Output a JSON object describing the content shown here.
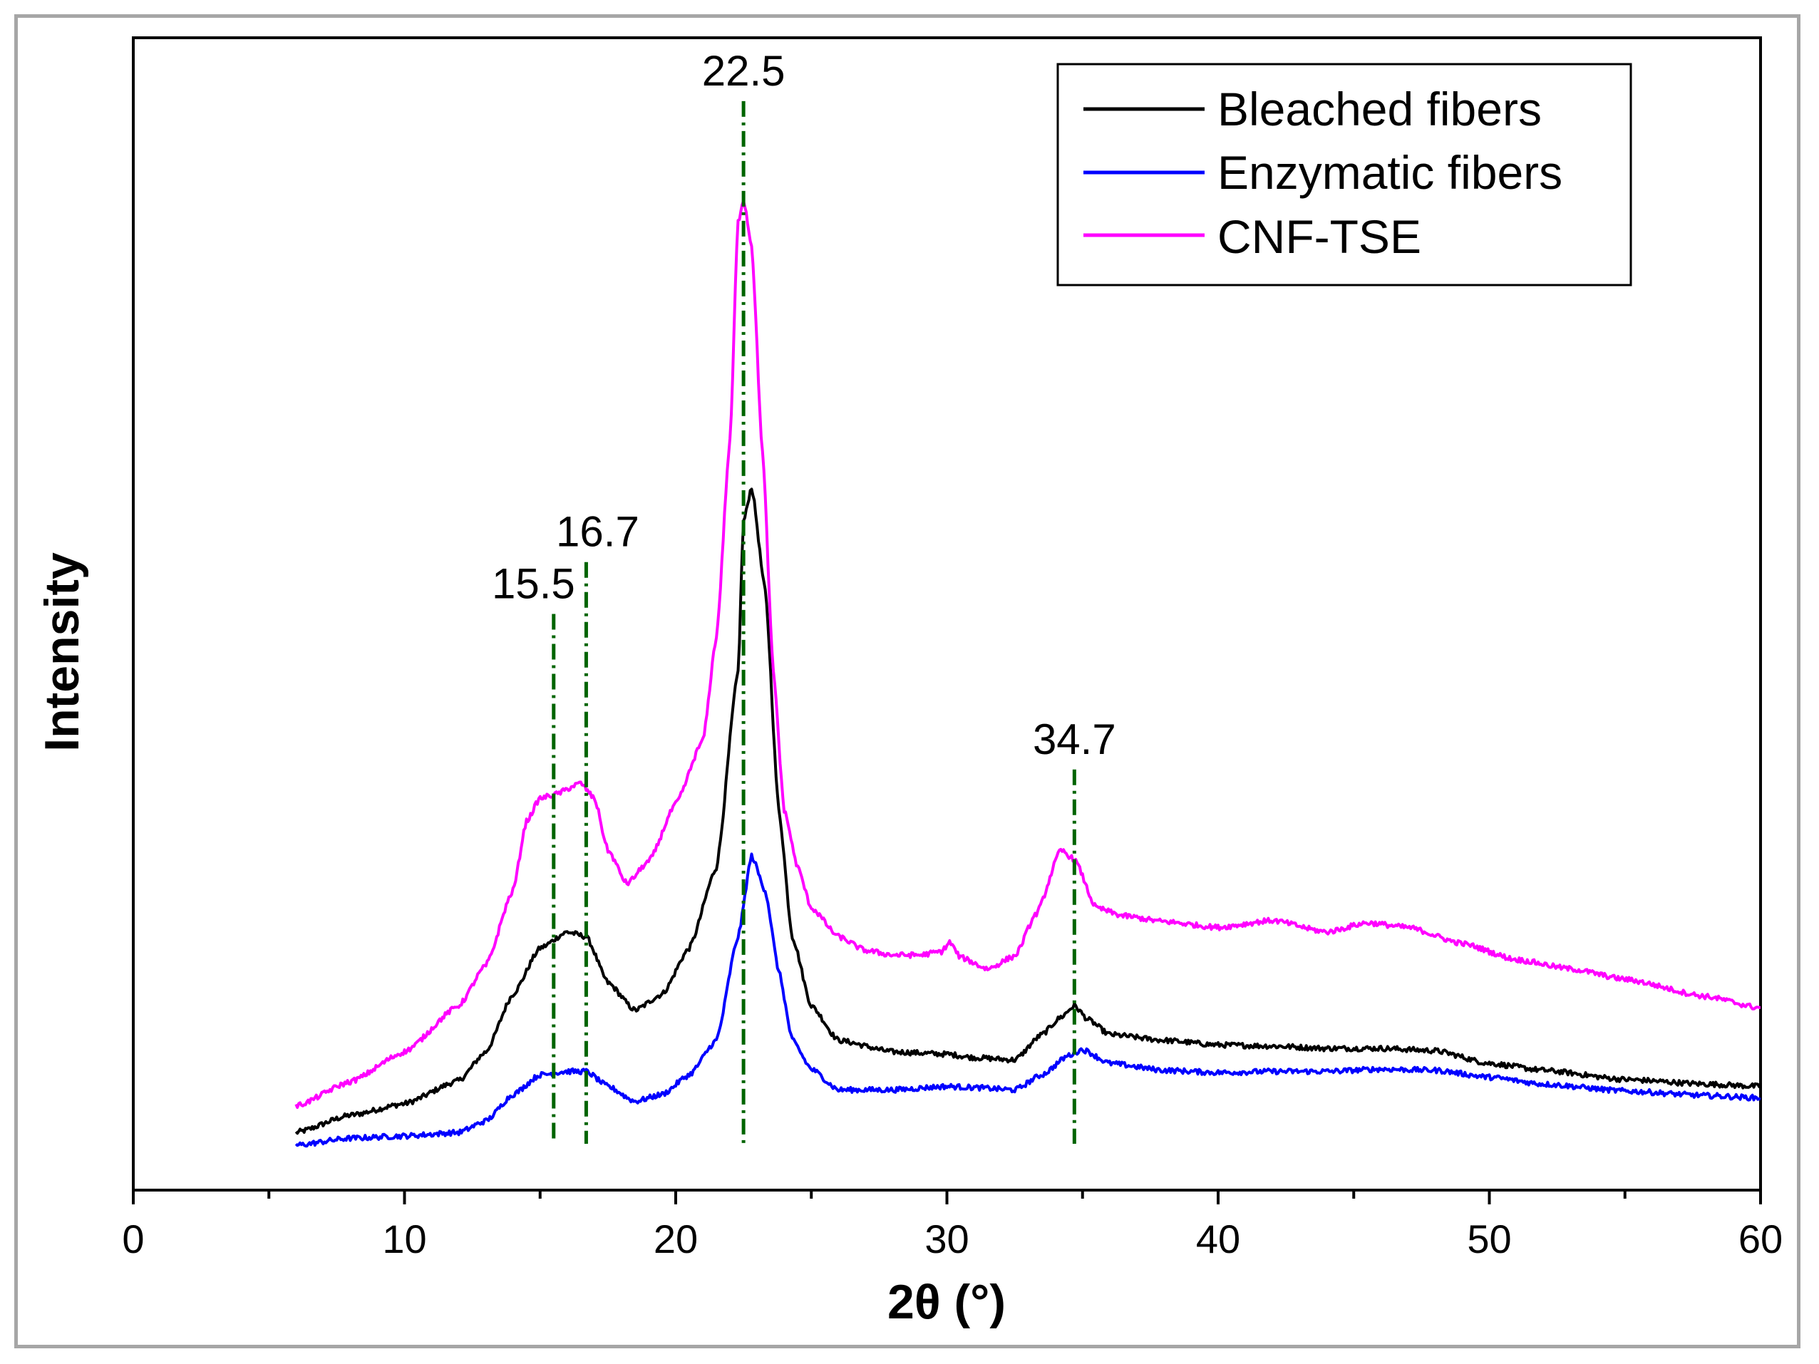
{
  "chart_data": {
    "type": "line",
    "title": "",
    "xlabel": "2θ (°)",
    "ylabel": "Intensity",
    "xlim": [
      0,
      60
    ],
    "ylim": [
      0,
      100
    ],
    "x_ticks": [
      0,
      10,
      20,
      30,
      40,
      50,
      60
    ],
    "y_ticks_shown": false,
    "legend_position": "top-right",
    "colors": {
      "bleached": "#000000",
      "enzymatic": "#0000ff",
      "cnf": "#ff00ff",
      "markers": "#006400"
    },
    "series": [
      {
        "name": "Bleached fibers",
        "color": "#000000",
        "points": [
          [
            6,
            5
          ],
          [
            8,
            6.5
          ],
          [
            10,
            7.5
          ],
          [
            12,
            9.5
          ],
          [
            13,
            12
          ],
          [
            14,
            17
          ],
          [
            15,
            21
          ],
          [
            16,
            22.4
          ],
          [
            16.7,
            22
          ],
          [
            17.5,
            18
          ],
          [
            18.5,
            15.6
          ],
          [
            19.5,
            17
          ],
          [
            20.5,
            21
          ],
          [
            21.5,
            28
          ],
          [
            22.3,
            45
          ],
          [
            22.5,
            58
          ],
          [
            22.8,
            61
          ],
          [
            23.3,
            52
          ],
          [
            23.8,
            33
          ],
          [
            24.3,
            22
          ],
          [
            25,
            16
          ],
          [
            26,
            13
          ],
          [
            28,
            12
          ],
          [
            30,
            11.8
          ],
          [
            31,
            11.5
          ],
          [
            32.5,
            11.3
          ],
          [
            33.5,
            13.5
          ],
          [
            34.2,
            15
          ],
          [
            34.7,
            16
          ],
          [
            35.2,
            14.8
          ],
          [
            36,
            13.5
          ],
          [
            38,
            13
          ],
          [
            40,
            12.6
          ],
          [
            42,
            12.5
          ],
          [
            44,
            12.3
          ],
          [
            46,
            12.3
          ],
          [
            48,
            12.1
          ],
          [
            50,
            11
          ],
          [
            52,
            10.4
          ],
          [
            55,
            9.6
          ],
          [
            58,
            9.2
          ],
          [
            60,
            9
          ]
        ]
      },
      {
        "name": "Enzymatic fibers",
        "color": "#0000ff",
        "points": [
          [
            6,
            3.9
          ],
          [
            8,
            4.5
          ],
          [
            10,
            4.7
          ],
          [
            12,
            5
          ],
          [
            13,
            6
          ],
          [
            14,
            8.3
          ],
          [
            15,
            10
          ],
          [
            16,
            10.3
          ],
          [
            16.7,
            10.3
          ],
          [
            17.5,
            9
          ],
          [
            18.5,
            7.7
          ],
          [
            19.5,
            8.3
          ],
          [
            20.5,
            10
          ],
          [
            21.5,
            13
          ],
          [
            22.3,
            22
          ],
          [
            22.8,
            29
          ],
          [
            23.3,
            26
          ],
          [
            23.8,
            19
          ],
          [
            24.3,
            13
          ],
          [
            25,
            10.5
          ],
          [
            26,
            8.7
          ],
          [
            28,
            8.7
          ],
          [
            30,
            9
          ],
          [
            31,
            8.9
          ],
          [
            32.5,
            8.7
          ],
          [
            33.5,
            10
          ],
          [
            34.5,
            11.7
          ],
          [
            35,
            12.2
          ],
          [
            36,
            11
          ],
          [
            38,
            10.4
          ],
          [
            40,
            10.2
          ],
          [
            42,
            10.3
          ],
          [
            44,
            10.3
          ],
          [
            46,
            10.5
          ],
          [
            48,
            10.4
          ],
          [
            50,
            9.8
          ],
          [
            52,
            9.2
          ],
          [
            55,
            8.6
          ],
          [
            58,
            8.2
          ],
          [
            60,
            8
          ]
        ]
      },
      {
        "name": "CNF-TSE",
        "color": "#ff00ff",
        "points": [
          [
            6,
            7.3
          ],
          [
            8,
            9.4
          ],
          [
            10,
            12
          ],
          [
            12,
            16
          ],
          [
            13,
            19.5
          ],
          [
            14,
            26
          ],
          [
            14.5,
            32
          ],
          [
            15,
            34
          ],
          [
            15.5,
            34.3
          ],
          [
            16.5,
            35.3
          ],
          [
            17,
            34
          ],
          [
            17.5,
            29.5
          ],
          [
            18.2,
            26.6
          ],
          [
            19,
            28.5
          ],
          [
            20,
            33.5
          ],
          [
            21,
            39
          ],
          [
            21.5,
            48
          ],
          [
            22,
            65
          ],
          [
            22.3,
            84
          ],
          [
            22.5,
            86
          ],
          [
            22.8,
            82
          ],
          [
            23.2,
            64
          ],
          [
            23.6,
            45
          ],
          [
            24,
            33
          ],
          [
            24.5,
            28
          ],
          [
            25,
            24.5
          ],
          [
            26,
            22
          ],
          [
            27,
            20.8
          ],
          [
            28,
            20.4
          ],
          [
            29,
            20.4
          ],
          [
            29.8,
            20.7
          ],
          [
            30.1,
            21.5
          ],
          [
            30.5,
            20.2
          ],
          [
            31.5,
            19.2
          ],
          [
            32.5,
            20.3
          ],
          [
            33.3,
            24
          ],
          [
            34.2,
            29.5
          ],
          [
            34.7,
            28.7
          ],
          [
            35.5,
            24.5
          ],
          [
            36.5,
            23.8
          ],
          [
            38,
            23.3
          ],
          [
            40,
            22.8
          ],
          [
            42,
            23.4
          ],
          [
            44,
            22.4
          ],
          [
            45.5,
            23.2
          ],
          [
            47,
            22.8
          ],
          [
            49,
            21.4
          ],
          [
            51,
            20
          ],
          [
            53,
            19.2
          ],
          [
            55,
            18.3
          ],
          [
            58,
            16.8
          ],
          [
            60,
            15.8
          ]
        ]
      }
    ],
    "markers": [
      {
        "x": 15.5,
        "label": "15.5",
        "y_top": 50
      },
      {
        "x": 16.7,
        "label": "16.7",
        "y_top": 54.5
      },
      {
        "x": 22.5,
        "label": "22.5",
        "y_top": 94.5
      },
      {
        "x": 34.7,
        "label": "34.7",
        "y_top": 36.5
      }
    ]
  }
}
